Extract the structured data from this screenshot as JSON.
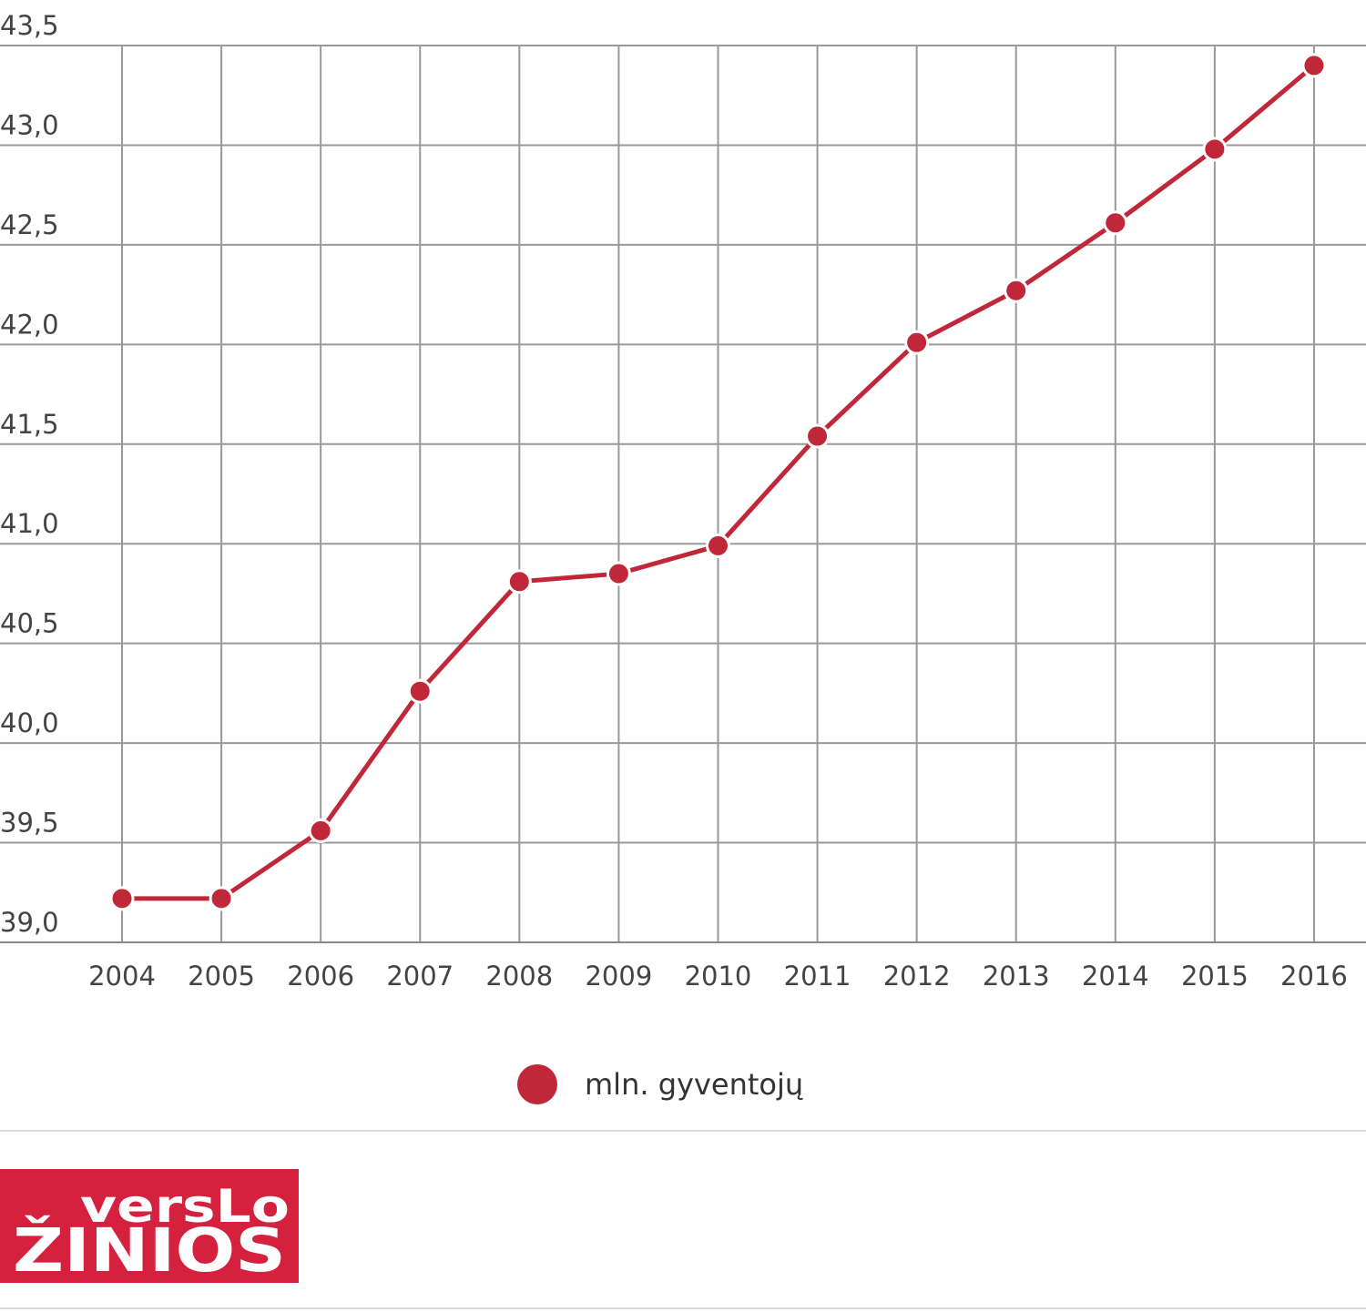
{
  "chart_data": {
    "type": "line",
    "title": "",
    "xlabel": "",
    "ylabel": "",
    "categories": [
      "2004",
      "2005",
      "2006",
      "2007",
      "2008",
      "2009",
      "2010",
      "2011",
      "2012",
      "2013",
      "2014",
      "2015",
      "2016"
    ],
    "series": [
      {
        "name": "mln. gyventojų",
        "color": "#c0283a",
        "values": [
          39.22,
          39.22,
          39.56,
          40.26,
          40.81,
          40.85,
          40.99,
          41.54,
          42.01,
          42.27,
          42.61,
          42.98,
          43.4
        ]
      }
    ],
    "ylim": [
      39.0,
      43.5
    ],
    "yticks": [
      "39,0",
      "39,5",
      "40,0",
      "40,5",
      "41,0",
      "41,5",
      "42,0",
      "42,5",
      "43,0",
      "43,5"
    ],
    "grid": true,
    "legend_position": "bottom-center"
  },
  "legend": {
    "label": "mln. gyventojų"
  },
  "logo": {
    "line1": "versLo",
    "line2": "ŽINIOS",
    "color": "#d4213d"
  }
}
